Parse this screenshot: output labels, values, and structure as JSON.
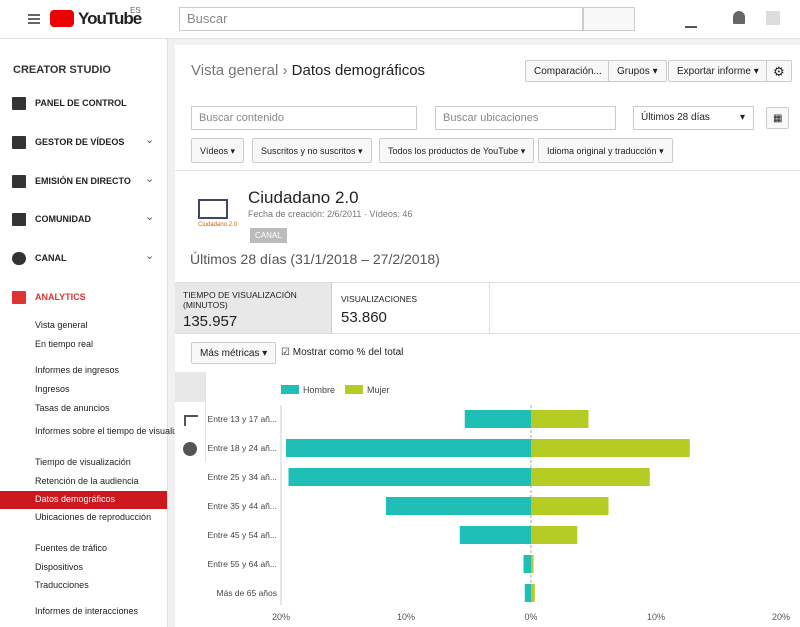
{
  "header": {
    "logo": "YouTube",
    "region": "ES",
    "search_placeholder": "Buscar"
  },
  "sidebar": {
    "title": "CREATOR STUDIO",
    "sections": [
      "PANEL DE CONTROL",
      "GESTOR DE VÍDEOS",
      "EMISIÓN EN DIRECTO",
      "COMUNIDAD",
      "CANAL",
      "ANALYTICS"
    ],
    "analytics_items": [
      "Vista general",
      "En tiempo real",
      "Informes de ingresos",
      "Ingresos",
      "Tasas de anuncios",
      "Informes sobre el tiempo de visualización",
      "Tiempo de visualización",
      "Retención de la audiencia",
      "Datos demográficos",
      "Ubicaciones de reproducción",
      "Fuentes de tráfico",
      "Dispositivos",
      "Traducciones",
      "Informes de interacciones"
    ]
  },
  "breadcrumb": {
    "parent": "Vista general",
    "current": "Datos demográficos"
  },
  "buttons": [
    "Comparación...",
    "Grupos",
    "Exportar informe"
  ],
  "filters": {
    "search_content": "Buscar contenido",
    "search_locations": "Buscar ubicaciones",
    "period": "Últimos 28 días",
    "dropdowns": [
      "Vídeos",
      "Suscritos y no suscritos",
      "Todos los productos de YouTube",
      "Idioma original y traducción"
    ]
  },
  "channel": {
    "name": "Ciudadano 2.0",
    "meta": "Fecha de creación: 2/6/2011 · Vídeos: 46",
    "badge": "CANAL",
    "logo_text": "Ciudadano 2.0"
  },
  "range": "Últimos 28 días (31/1/2018 – 27/2/2018)",
  "metrics": [
    {
      "label": "TIEMPO DE VISUALIZACIÓN (MINUTOS)",
      "value": "135.957"
    },
    {
      "label": "VISUALIZACIONES",
      "value": "53.860"
    }
  ],
  "more_metrics": "Más métricas",
  "checkbox": "Mostrar como % del total",
  "chart_data": {
    "type": "butterfly",
    "categories": [
      "Entre 13 y 17 añ...",
      "Entre 18 y 24 añ...",
      "Entre 25 y 34 añ...",
      "Entre 35 y 44 añ...",
      "Entre 45 y 54 añ...",
      "Entre 55 y 64 añ...",
      "Más de 65 años"
    ],
    "series": [
      {
        "name": "Hombre",
        "color": "#1fbfb8",
        "values": [
          5.3,
          19.6,
          19.4,
          11.6,
          5.7,
          0.6,
          0.5
        ]
      },
      {
        "name": "Mujer",
        "color": "#b5cc24",
        "values": [
          4.6,
          12.7,
          9.5,
          6.2,
          3.7,
          0.2,
          0.3
        ]
      }
    ],
    "xlim": [
      -20,
      20
    ],
    "xticks": [
      {
        "value": -20,
        "label": "20%"
      },
      {
        "value": -10,
        "label": "10%"
      },
      {
        "value": 0,
        "label": "0%"
      },
      {
        "value": 10,
        "label": "10%"
      },
      {
        "value": 20,
        "label": "20%"
      }
    ]
  }
}
